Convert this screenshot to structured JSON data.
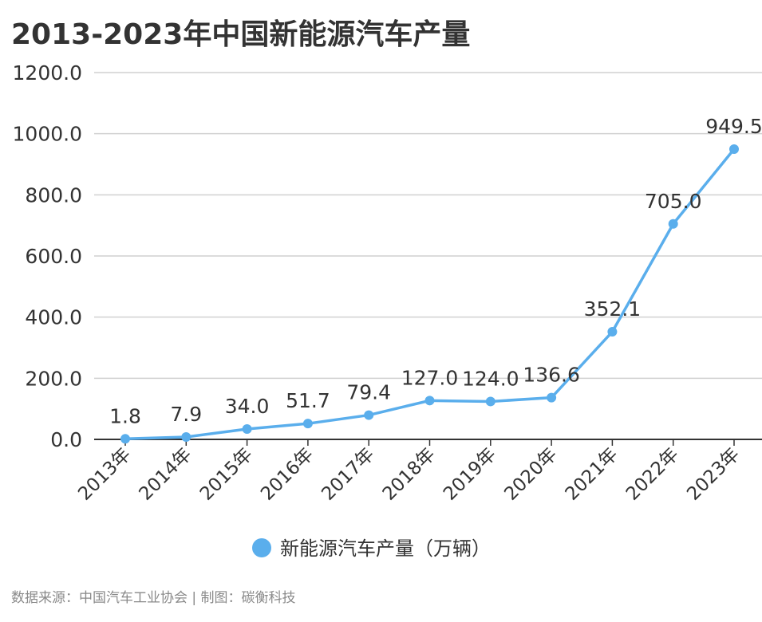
{
  "title": "2013-2023年中国新能源汽车产量",
  "source": "数据来源：中国汽车工业协会 | 制图：碳衡科技",
  "chart_data": {
    "type": "line",
    "title": "2013-2023年中国新能源汽车产量",
    "categories": [
      "2013年",
      "2014年",
      "2015年",
      "2016年",
      "2017年",
      "2018年",
      "2019年",
      "2020年",
      "2021年",
      "2022年",
      "2023年"
    ],
    "series": [
      {
        "name": "新能源汽车产量（万辆）",
        "values": [
          1.8,
          7.9,
          34.0,
          51.7,
          79.4,
          127.0,
          124.0,
          136.6,
          352.1,
          705.0,
          949.5
        ],
        "labels": [
          "1.8",
          "7.9",
          "34.0",
          "51.7",
          "79.4",
          "127.0",
          "124.0",
          "136.6",
          "352.1",
          "705.0",
          "949.5"
        ],
        "color": "#5aaeec"
      }
    ],
    "ylim": [
      0,
      1200
    ],
    "yticks": [
      "0.0",
      "200.0",
      "400.0",
      "600.0",
      "800.0",
      "1000.0",
      "1200.0"
    ],
    "grid": true,
    "legend": "bottom-center"
  }
}
